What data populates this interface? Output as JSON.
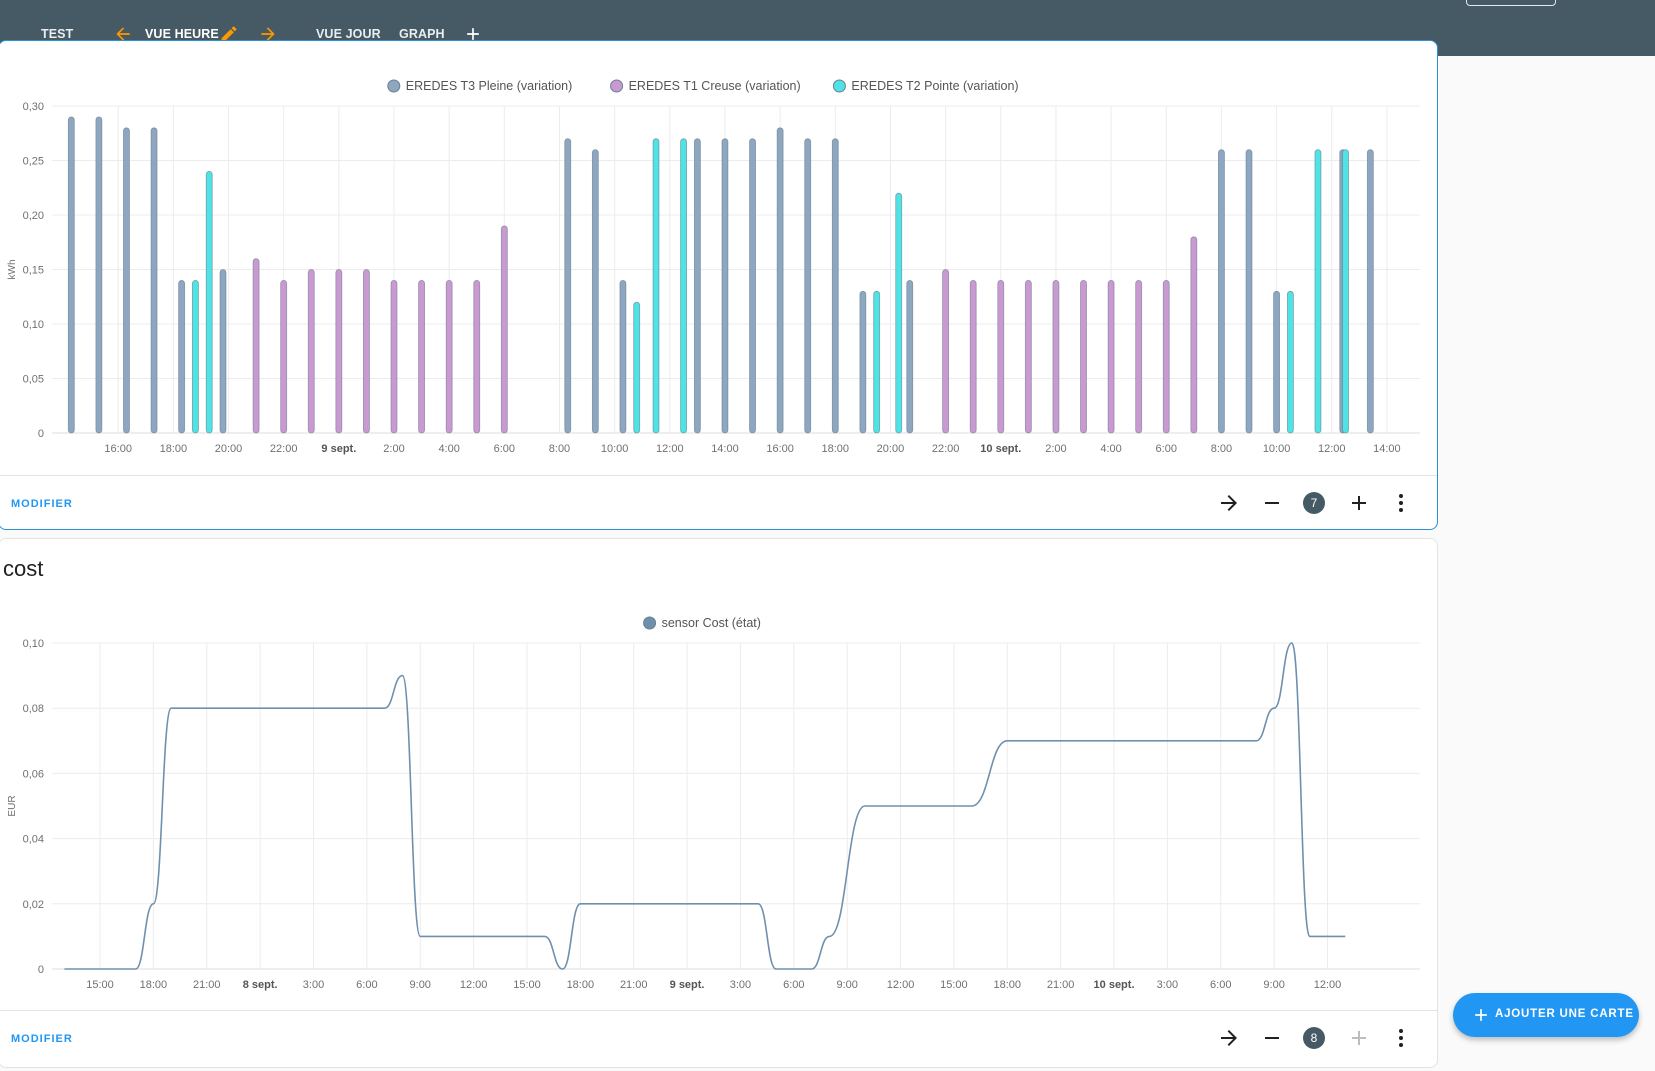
{
  "header": {
    "tabs": [
      {
        "label": "TEST"
      },
      {
        "label": "VUE HEURE"
      },
      {
        "label": "VUE JOUR"
      },
      {
        "label": "GRAPH"
      }
    ]
  },
  "energy_card": {
    "footer": {
      "modifier_label": "MODIFIER",
      "badge": "7"
    }
  },
  "cost_card": {
    "title": "cost",
    "footer": {
      "modifier_label": "MODIFIER",
      "badge": "8"
    }
  },
  "fab": {
    "label": "AJOUTER UNE CARTE"
  },
  "colors": {
    "header_bg": "#455a64",
    "accent_orange": "#ff9800",
    "link_blue": "#2196f3",
    "series_pleine": "#8ea7c1",
    "series_creuse": "#c99ad2",
    "series_pointe": "#4fe3e6",
    "series_cost": "#6f90ad"
  },
  "chart_data": [
    {
      "type": "bar",
      "title": "",
      "ylabel": "kWh",
      "ylim": [
        0,
        0.3
      ],
      "y_ticks": [
        "0",
        "0,05",
        "0,10",
        "0,15",
        "0,20",
        "0,25",
        "0,30"
      ],
      "x_ticks": [
        {
          "label": "16:00",
          "bold": false
        },
        {
          "label": "18:00",
          "bold": false
        },
        {
          "label": "20:00",
          "bold": false
        },
        {
          "label": "22:00",
          "bold": false
        },
        {
          "label": "9 sept.",
          "bold": true
        },
        {
          "label": "2:00",
          "bold": false
        },
        {
          "label": "4:00",
          "bold": false
        },
        {
          "label": "6:00",
          "bold": false
        },
        {
          "label": "8:00",
          "bold": false
        },
        {
          "label": "10:00",
          "bold": false
        },
        {
          "label": "12:00",
          "bold": false
        },
        {
          "label": "14:00",
          "bold": false
        },
        {
          "label": "16:00",
          "bold": false
        },
        {
          "label": "18:00",
          "bold": false
        },
        {
          "label": "20:00",
          "bold": false
        },
        {
          "label": "22:00",
          "bold": false
        },
        {
          "label": "10 sept.",
          "bold": true
        },
        {
          "label": "2:00",
          "bold": false
        },
        {
          "label": "4:00",
          "bold": false
        },
        {
          "label": "6:00",
          "bold": false
        },
        {
          "label": "8:00",
          "bold": false
        },
        {
          "label": "10:00",
          "bold": false
        },
        {
          "label": "12:00",
          "bold": false
        },
        {
          "label": "14:00",
          "bold": false
        }
      ],
      "legend": "top-center",
      "grid": true,
      "series": [
        {
          "name": "EREDES T3 Pleine (variation)",
          "color": "#8ea7c1",
          "points": [
            [
              14.3,
              0.29
            ],
            [
              15.3,
              0.29
            ],
            [
              16.3,
              0.28
            ],
            [
              17.3,
              0.28
            ],
            [
              18.3,
              0.14
            ],
            [
              19.8,
              0.15
            ],
            [
              32.3,
              0.27
            ],
            [
              33.3,
              0.26
            ],
            [
              34.3,
              0.14
            ],
            [
              37.0,
              0.27
            ],
            [
              38.0,
              0.27
            ],
            [
              39.0,
              0.27
            ],
            [
              40.0,
              0.28
            ],
            [
              41.0,
              0.27
            ],
            [
              42.0,
              0.27
            ],
            [
              43.0,
              0.13
            ],
            [
              44.7,
              0.14
            ],
            [
              56.0,
              0.26
            ],
            [
              57.0,
              0.26
            ],
            [
              58.0,
              0.13
            ],
            [
              60.4,
              0.26
            ],
            [
              61.4,
              0.26
            ]
          ]
        },
        {
          "name": "EREDES T1 Creuse (variation)",
          "color": "#c99ad2",
          "points": [
            [
              21.0,
              0.16
            ],
            [
              22.0,
              0.14
            ],
            [
              23.0,
              0.15
            ],
            [
              24.0,
              0.15
            ],
            [
              25.0,
              0.15
            ],
            [
              26.0,
              0.14
            ],
            [
              27.0,
              0.14
            ],
            [
              28.0,
              0.14
            ],
            [
              29.0,
              0.14
            ],
            [
              30.0,
              0.19
            ],
            [
              46.0,
              0.15
            ],
            [
              47.0,
              0.14
            ],
            [
              48.0,
              0.14
            ],
            [
              49.0,
              0.14
            ],
            [
              50.0,
              0.14
            ],
            [
              51.0,
              0.14
            ],
            [
              52.0,
              0.14
            ],
            [
              53.0,
              0.14
            ],
            [
              54.0,
              0.14
            ],
            [
              55.0,
              0.18
            ]
          ]
        },
        {
          "name": "EREDES T2 Pointe (variation)",
          "color": "#4fe3e6",
          "points": [
            [
              18.8,
              0.14
            ],
            [
              19.3,
              0.24
            ],
            [
              34.8,
              0.12
            ],
            [
              35.5,
              0.27
            ],
            [
              36.5,
              0.27
            ],
            [
              43.5,
              0.13
            ],
            [
              44.3,
              0.22
            ],
            [
              58.5,
              0.13
            ],
            [
              59.5,
              0.26
            ],
            [
              60.5,
              0.26
            ]
          ]
        }
      ]
    },
    {
      "type": "line",
      "title": "",
      "ylabel": "EUR",
      "ylim": [
        0,
        0.1
      ],
      "y_ticks": [
        "0",
        "0,02",
        "0,04",
        "0,06",
        "0,08",
        "0,10"
      ],
      "x_ticks": [
        {
          "label": "15:00",
          "bold": false
        },
        {
          "label": "18:00",
          "bold": false
        },
        {
          "label": "21:00",
          "bold": false
        },
        {
          "label": "8 sept.",
          "bold": true
        },
        {
          "label": "3:00",
          "bold": false
        },
        {
          "label": "6:00",
          "bold": false
        },
        {
          "label": "9:00",
          "bold": false
        },
        {
          "label": "12:00",
          "bold": false
        },
        {
          "label": "15:00",
          "bold": false
        },
        {
          "label": "18:00",
          "bold": false
        },
        {
          "label": "21:00",
          "bold": false
        },
        {
          "label": "9 sept.",
          "bold": true
        },
        {
          "label": "3:00",
          "bold": false
        },
        {
          "label": "6:00",
          "bold": false
        },
        {
          "label": "9:00",
          "bold": false
        },
        {
          "label": "12:00",
          "bold": false
        },
        {
          "label": "15:00",
          "bold": false
        },
        {
          "label": "18:00",
          "bold": false
        },
        {
          "label": "21:00",
          "bold": false
        },
        {
          "label": "10 sept.",
          "bold": true
        },
        {
          "label": "3:00",
          "bold": false
        },
        {
          "label": "6:00",
          "bold": false
        },
        {
          "label": "9:00",
          "bold": false
        },
        {
          "label": "12:00",
          "bold": false
        }
      ],
      "legend": "top-center",
      "grid": true,
      "series": [
        {
          "name": "sensor Cost (état)",
          "color": "#6f90ad",
          "points": [
            [
              13.0,
              0
            ],
            [
              17.0,
              0
            ],
            [
              18.0,
              0.02
            ],
            [
              19.0,
              0.08
            ],
            [
              31.0,
              0.08
            ],
            [
              32.0,
              0.09
            ],
            [
              33.0,
              0.01
            ],
            [
              40.0,
              0.01
            ],
            [
              41.0,
              0
            ],
            [
              42.0,
              0.02
            ],
            [
              52.0,
              0.02
            ],
            [
              53.0,
              0
            ],
            [
              55.0,
              0
            ],
            [
              56.0,
              0.01
            ],
            [
              58.0,
              0.05
            ],
            [
              64.0,
              0.05
            ],
            [
              66.0,
              0.07
            ],
            [
              80.0,
              0.07
            ],
            [
              81.0,
              0.08
            ],
            [
              82.0,
              0.1
            ],
            [
              83.0,
              0.01
            ],
            [
              85.0,
              0.01
            ]
          ]
        }
      ]
    }
  ]
}
